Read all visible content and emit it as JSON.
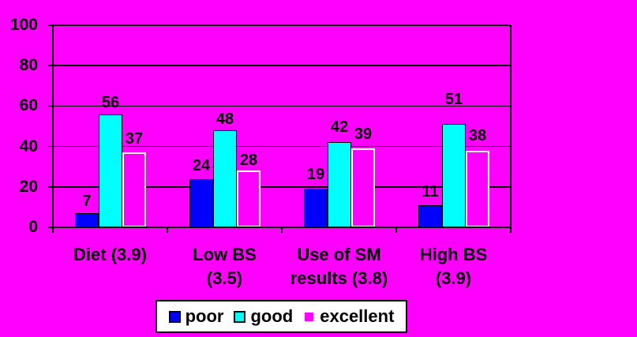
{
  "chart_data": {
    "type": "bar",
    "title": "",
    "categories": [
      "Diet (3.9)",
      "Low BS (3.5)",
      "Use of SM results (3.8)",
      "High BS (3.9)"
    ],
    "category_label_lines": [
      [
        "Diet (3.9)"
      ],
      [
        "Low BS",
        "(3.5)"
      ],
      [
        "Use of SM",
        "results (3.8)"
      ],
      [
        "High BS",
        "(3.9)"
      ]
    ],
    "series": [
      {
        "name": "poor",
        "color": "#0000FF",
        "border_color": "#000000",
        "values": [
          7,
          24,
          19,
          11
        ]
      },
      {
        "name": "good",
        "color": "#00FFFF",
        "border_color": "#000000",
        "values": [
          56,
          48,
          42,
          51
        ]
      },
      {
        "name": "excellent",
        "color": "#FF00FF",
        "border_color": "#FFFFFF",
        "values": [
          37,
          28,
          39,
          38
        ]
      }
    ],
    "xlabel": "",
    "ylabel": "",
    "ylim": [
      0,
      100
    ],
    "yticks": [
      0,
      20,
      40,
      60,
      80,
      100
    ],
    "grid": true,
    "data_labels_shown": true,
    "legend_position": "bottom",
    "background_color": "#FF00FF",
    "axis_color": "#000000",
    "text_color": "#000000",
    "legend_background": "#FFFFFF",
    "value_label_gaps": [
      [
        5,
        5,
        7
      ],
      [
        7,
        4,
        3
      ],
      [
        8,
        9,
        8
      ],
      [
        7,
        21,
        9
      ]
    ]
  }
}
